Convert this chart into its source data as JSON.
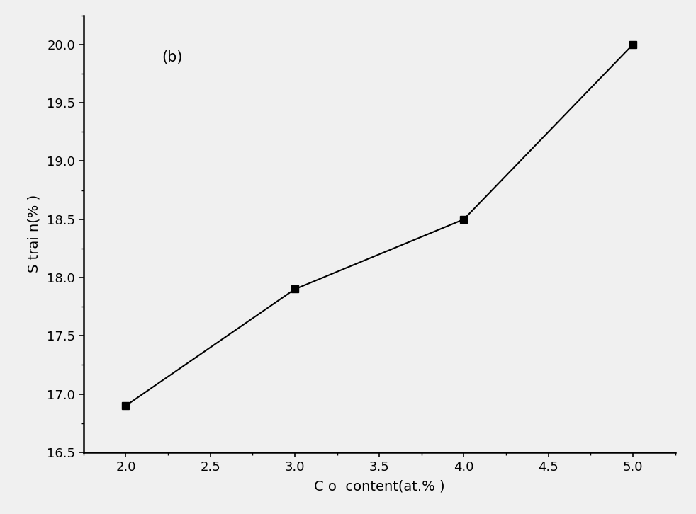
{
  "x": [
    2.0,
    3.0,
    4.0,
    5.0
  ],
  "y": [
    16.9,
    17.9,
    18.5,
    20.0
  ],
  "xlabel": "C o  content(at.% )",
  "ylabel": "S trai n(% )",
  "annotation": "(b)",
  "xlim": [
    1.75,
    5.25
  ],
  "ylim": [
    16.5,
    20.25
  ],
  "xticks": [
    2.0,
    2.5,
    3.0,
    3.5,
    4.0,
    4.5,
    5.0
  ],
  "yticks": [
    16.5,
    17.0,
    17.5,
    18.0,
    18.5,
    19.0,
    19.5,
    20.0
  ],
  "marker": "s",
  "marker_size": 7,
  "line_color": "#000000",
  "marker_color": "#000000",
  "background_color": "#f0f0f0",
  "axes_color": "#f0f0f0",
  "label_fontsize": 14,
  "tick_fontsize": 13,
  "annotation_fontsize": 15
}
